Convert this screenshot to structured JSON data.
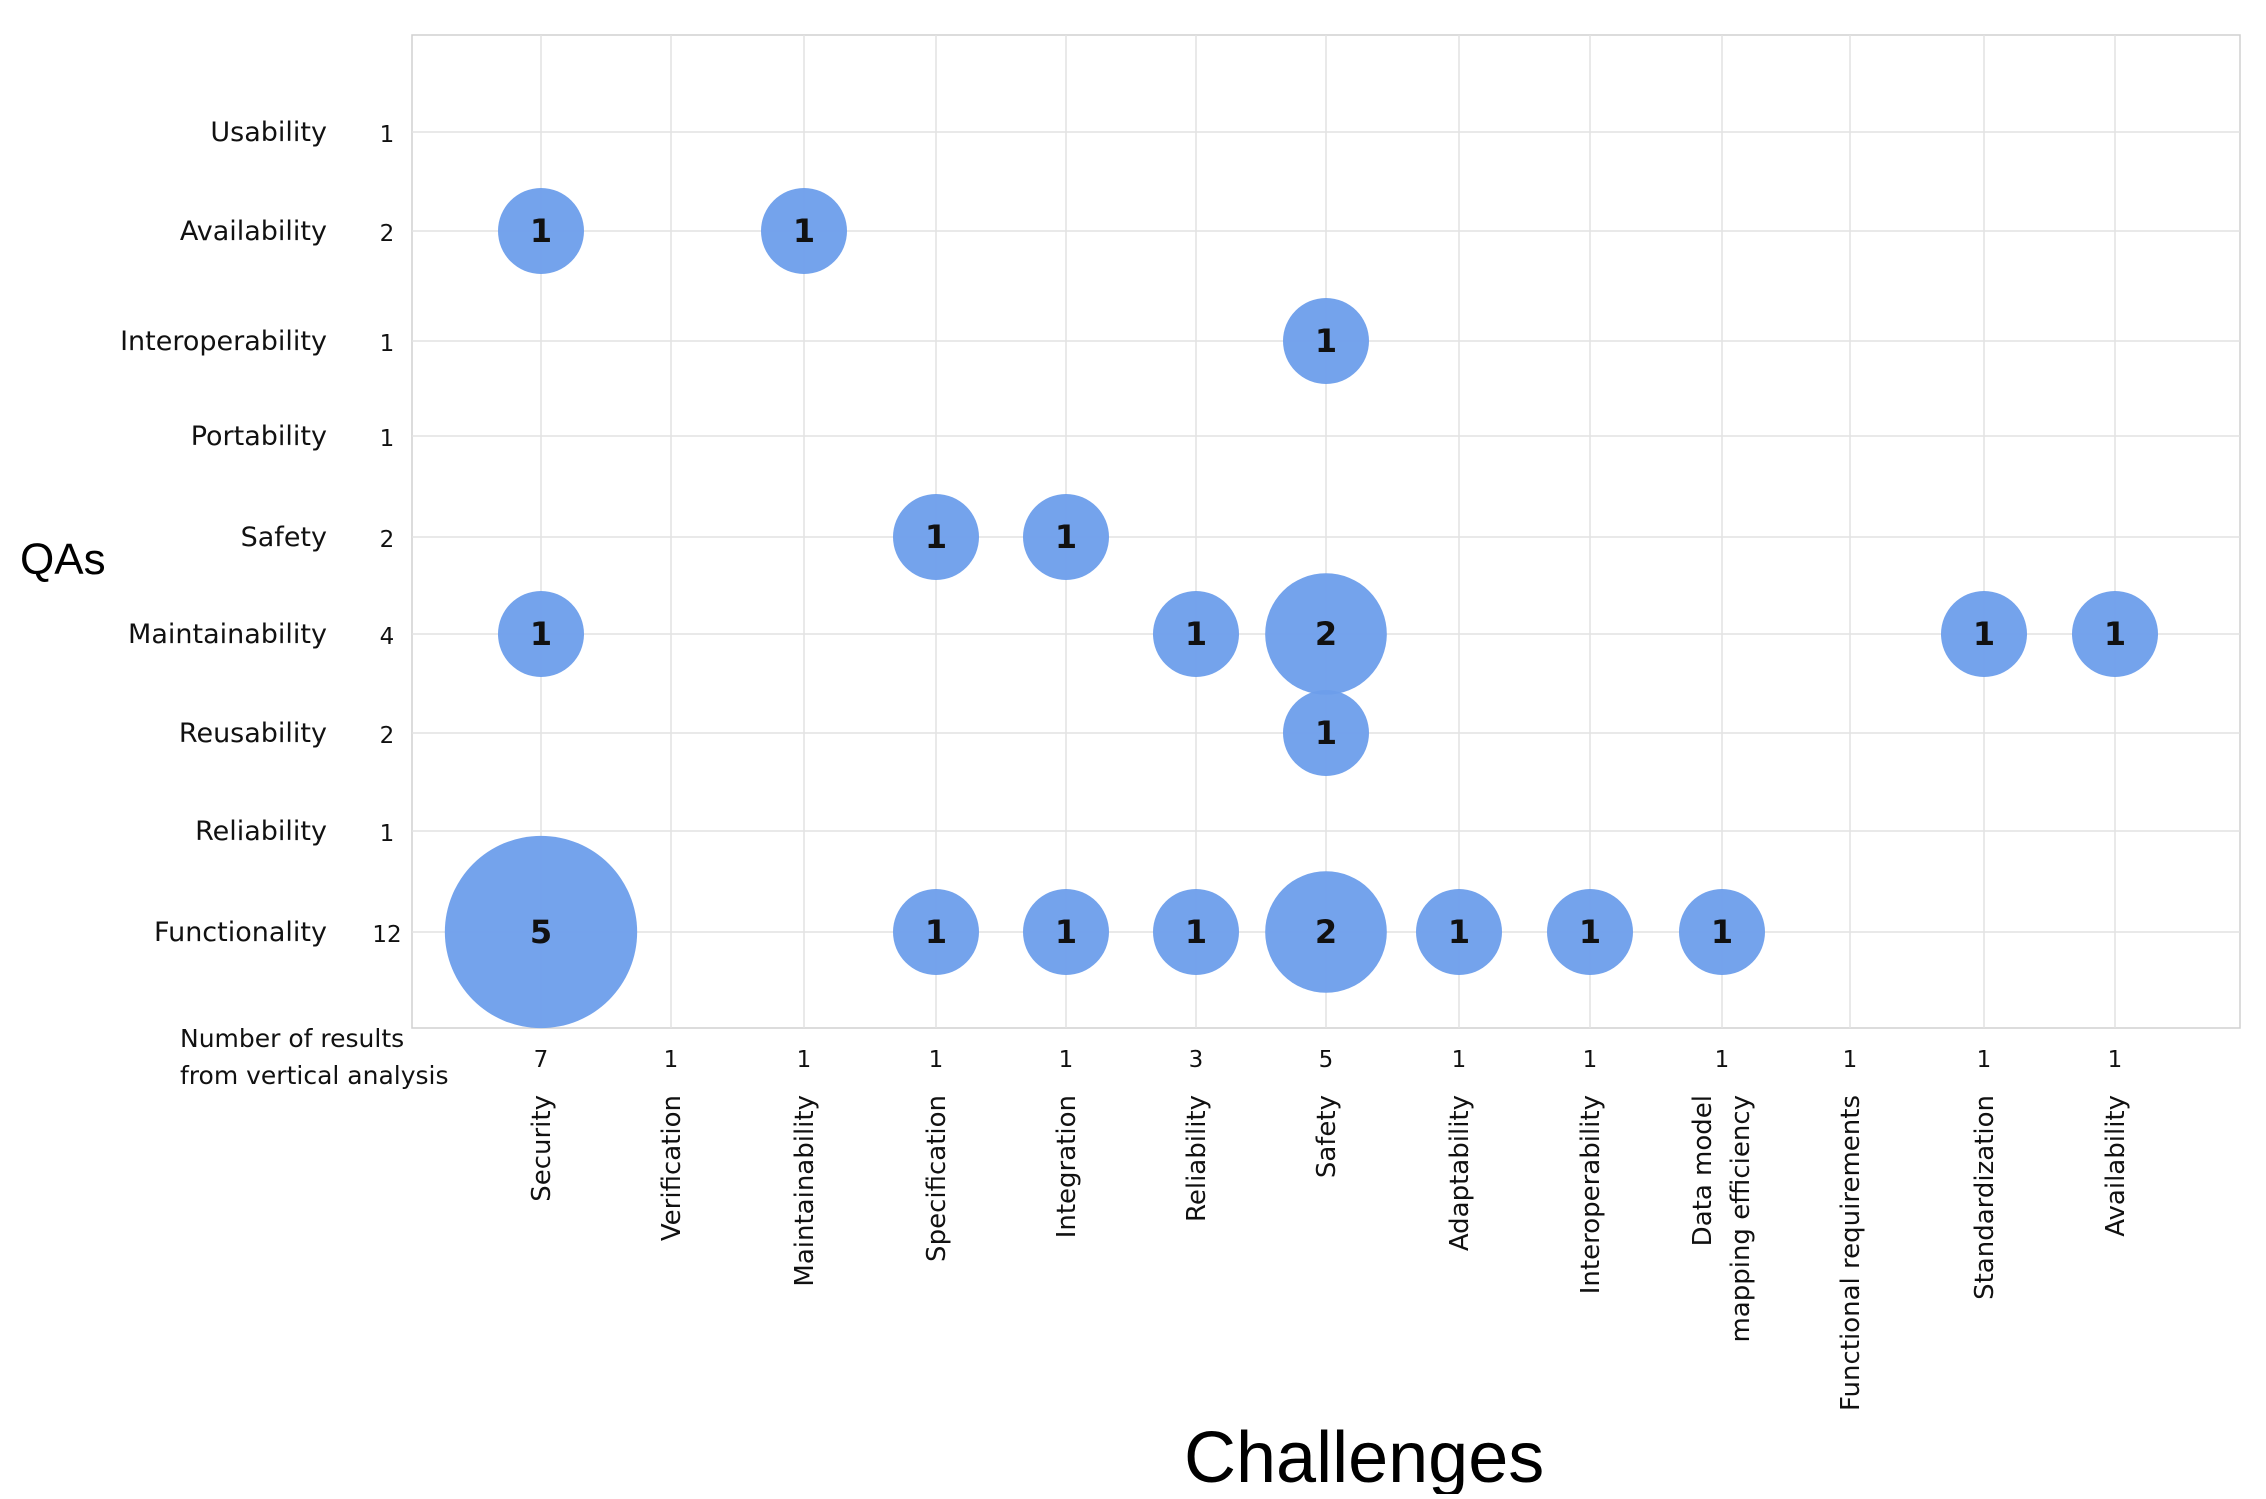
{
  "chart_data": {
    "type": "bubble",
    "y_axis_title": "QAs",
    "x_axis_title": "Challenges",
    "row_totals_label_line1": "Number of results",
    "row_totals_label_line2": "from vertical analysis",
    "rows": [
      {
        "label": "Usability",
        "count": "1"
      },
      {
        "label": "Availability",
        "count": "2"
      },
      {
        "label": "Interoperability",
        "count": "1"
      },
      {
        "label": "Portability",
        "count": "1"
      },
      {
        "label": "Safety",
        "count": "2"
      },
      {
        "label": "Maintainability",
        "count": "4"
      },
      {
        "label": "Reusability",
        "count": "2"
      },
      {
        "label": "Reliability",
        "count": "1"
      },
      {
        "label": "Functionality",
        "count": "12"
      }
    ],
    "columns": [
      {
        "label": "Security",
        "count": "7"
      },
      {
        "label": "Verification",
        "count": "1"
      },
      {
        "label": "Maintainability",
        "count": "1"
      },
      {
        "label": "Specification",
        "count": "1"
      },
      {
        "label": "Integration",
        "count": "1"
      },
      {
        "label": "Reliability",
        "count": "3"
      },
      {
        "label": "Safety",
        "count": "5"
      },
      {
        "label": "Adaptability",
        "count": "1"
      },
      {
        "label": "Interoperability",
        "count": "1"
      },
      {
        "label": "Data model mapping efficiency",
        "count": "1"
      },
      {
        "label": "Functional requirements",
        "count": "1"
      },
      {
        "label": "Standardization",
        "count": "1"
      },
      {
        "label": "Availability",
        "count": "1"
      }
    ],
    "bubbles": [
      {
        "row": "Availability",
        "column": "Security",
        "value": 1
      },
      {
        "row": "Availability",
        "column": "Maintainability",
        "value": 1
      },
      {
        "row": "Interoperability",
        "column": "Safety",
        "value": 1
      },
      {
        "row": "Safety",
        "column": "Specification",
        "value": 1
      },
      {
        "row": "Safety",
        "column": "Integration",
        "value": 1
      },
      {
        "row": "Maintainability",
        "column": "Security",
        "value": 1
      },
      {
        "row": "Maintainability",
        "column": "Reliability",
        "value": 1
      },
      {
        "row": "Maintainability",
        "column": "Safety",
        "value": 2
      },
      {
        "row": "Maintainability",
        "column": "Standardization",
        "value": 1
      },
      {
        "row": "Maintainability",
        "column": "Availability",
        "value": 1
      },
      {
        "row": "Reusability",
        "column": "Safety",
        "value": 1
      },
      {
        "row": "Functionality",
        "column": "Security",
        "value": 5
      },
      {
        "row": "Functionality",
        "column": "Specification",
        "value": 1
      },
      {
        "row": "Functionality",
        "column": "Integration",
        "value": 1
      },
      {
        "row": "Functionality",
        "column": "Reliability",
        "value": 1
      },
      {
        "row": "Functionality",
        "column": "Safety",
        "value": 2
      },
      {
        "row": "Functionality",
        "column": "Adaptability",
        "value": 1
      },
      {
        "row": "Functionality",
        "column": "Interoperability",
        "value": 1
      },
      {
        "row": "Functionality",
        "column": "Data model mapping efficiency",
        "value": 1
      }
    ],
    "bubble_color": "#6d9eeb",
    "grid": true
  }
}
